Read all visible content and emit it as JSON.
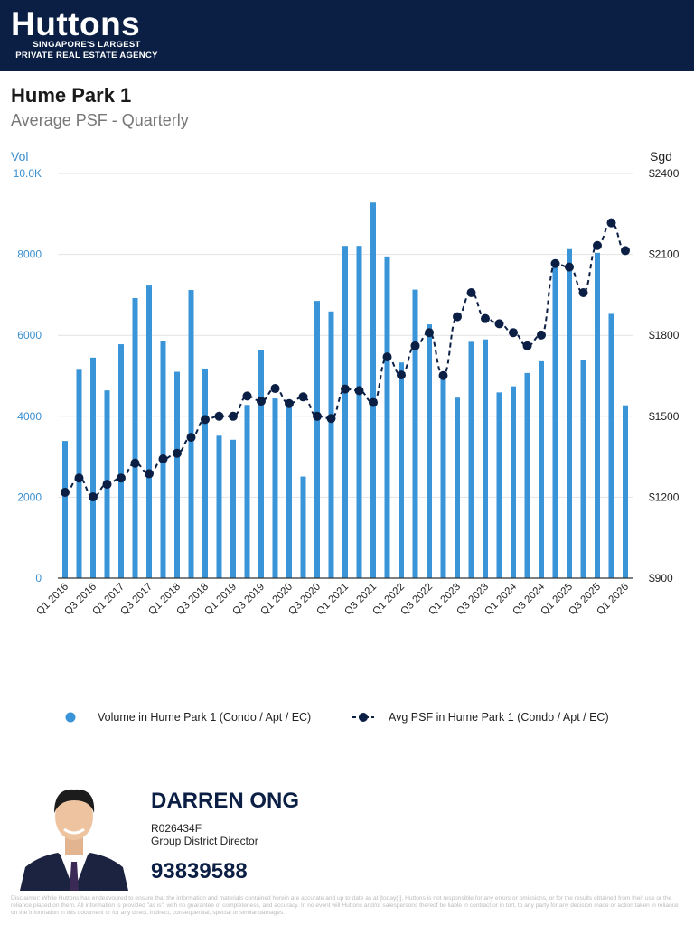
{
  "header": {
    "logo": "Huttons",
    "tagline1": "SINGAPORE'S LARGEST",
    "tagline2": "PRIVATE REAL ESTATE AGENCY"
  },
  "page": {
    "title": "Hume Park 1",
    "subtitle": "Average PSF - Quarterly"
  },
  "chart_data": {
    "type": "bar+line",
    "left_axis": {
      "label": "Vol",
      "range": [
        0,
        10000
      ],
      "ticks": [
        "0",
        "2000",
        "4000",
        "6000",
        "8000",
        "10.0K"
      ]
    },
    "right_axis": {
      "label": "Sgd",
      "range": [
        900,
        2400
      ],
      "ticks": [
        "$900",
        "$1200",
        "$1500",
        "$1800",
        "$2100",
        "$2400"
      ]
    },
    "categories": [
      "Q1 2016",
      "Q2 2016",
      "Q3 2016",
      "Q4 2016",
      "Q1 2017",
      "Q2 2017",
      "Q3 2017",
      "Q4 2017",
      "Q1 2018",
      "Q2 2018",
      "Q3 2018",
      "Q4 2018",
      "Q1 2019",
      "Q2 2019",
      "Q3 2019",
      "Q4 2019",
      "Q1 2020",
      "Q2 2020",
      "Q3 2020",
      "Q4 2020",
      "Q1 2021",
      "Q2 2021",
      "Q3 2021",
      "Q4 2021",
      "Q1 2022",
      "Q2 2022",
      "Q3 2022",
      "Q4 2022",
      "Q1 2023",
      "Q2 2023",
      "Q3 2023",
      "Q4 2023",
      "Q1 2024",
      "Q2 2024",
      "Q3 2024",
      "Q4 2024",
      "Q1 2025",
      "Q2 2025",
      "Q3 2025",
      "Q4 2025",
      "Q1 2026"
    ],
    "x_tick_labels": [
      "Q1 2016",
      "Q3 2016",
      "Q1 2017",
      "Q3 2017",
      "Q1 2018",
      "Q3 2018",
      "Q1 2019",
      "Q3 2019",
      "Q1 2020",
      "Q3 2020",
      "Q1 2021",
      "Q3 2021",
      "Q1 2022",
      "Q3 2022",
      "Q1 2023",
      "Q3 2023",
      "Q1 2024",
      "Q3 2024",
      "Q1 2025",
      "Q3 2025",
      "Q1 2026"
    ],
    "series": [
      {
        "name": "Volume in Hume Park 1 (Condo / Apt / EC)",
        "type": "bar",
        "axis": "left",
        "color": "#3a95d8",
        "values": [
          3390,
          5150,
          5450,
          4640,
          5780,
          6920,
          7230,
          5860,
          5100,
          7120,
          5180,
          3520,
          3420,
          4280,
          5630,
          4440,
          4330,
          2510,
          6850,
          6590,
          8210,
          8210,
          9280,
          7950,
          5330,
          7130,
          6270,
          5020,
          4460,
          5840,
          5900,
          4590,
          4740,
          5070,
          5360,
          7780,
          8130,
          5380,
          8040,
          6530,
          4270
        ]
      },
      {
        "name": "Avg PSF in Hume Park 1 (Condo / Apt / EC)",
        "type": "line",
        "style": "dashed",
        "axis": "right",
        "color": "#0b1f45",
        "values": [
          1218,
          1271,
          1201,
          1248,
          1271,
          1326,
          1287,
          1342,
          1363,
          1422,
          1488,
          1500,
          1500,
          1575,
          1556,
          1603,
          1547,
          1572,
          1500,
          1492,
          1601,
          1595,
          1551,
          1720,
          1653,
          1761,
          1810,
          1651,
          1869,
          1958,
          1862,
          1843,
          1810,
          1761,
          1801,
          2066,
          2053,
          1958,
          2133,
          2217,
          2114
        ]
      }
    ],
    "grid": true,
    "legend": "bottom"
  },
  "agent": {
    "name": "DARREN ONG",
    "license": "R026434F",
    "role": "Group District Director",
    "phone": "93839588"
  },
  "disclaimer": "Disclaimer: While Huttons has endeavoured to ensure that the information and materials contained herein are accurate and up to date as at [today()], Huttons is not responsible for any errors or omissions, or for the results obtained from their use or the reliance placed on them. All information is provided \"as is\", with no guarantee of completeness, and accuracy. In no event will Huttons and/or salespersons thereof be liable in contract or in tort, to any party for any decision made or action taken in reliance on the information in this document or for any direct, indirect, consequential, special or similar damages."
}
